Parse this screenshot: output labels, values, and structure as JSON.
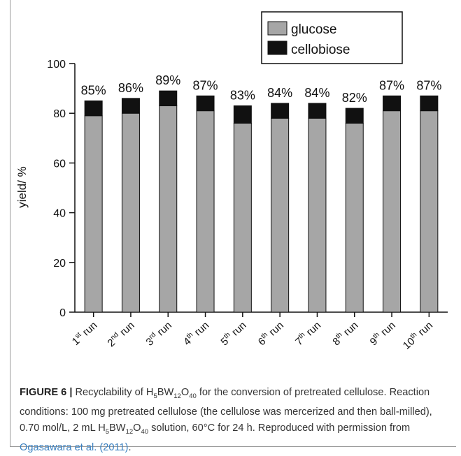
{
  "chart_data": {
    "type": "bar",
    "stacked": true,
    "categories": [
      "1st run",
      "2nd run",
      "3rd run",
      "4th run",
      "5th run",
      "6th run",
      "7th run",
      "8th run",
      "9th run",
      "10th run"
    ],
    "category_parts": [
      {
        "num": "1",
        "sup": "st",
        "word": " run"
      },
      {
        "num": "2",
        "sup": "nd",
        "word": " run"
      },
      {
        "num": "3",
        "sup": "rd",
        "word": " run"
      },
      {
        "num": "4",
        "sup": "th",
        "word": " run"
      },
      {
        "num": "5",
        "sup": "th",
        "word": " run"
      },
      {
        "num": "6",
        "sup": "th",
        "word": " run"
      },
      {
        "num": "7",
        "sup": "th",
        "word": " run"
      },
      {
        "num": "8",
        "sup": "th",
        "word": " run"
      },
      {
        "num": "9",
        "sup": "th",
        "word": " run"
      },
      {
        "num": "10",
        "sup": "th",
        "word": " run"
      }
    ],
    "series": [
      {
        "name": "glucose",
        "color": "#a6a6a6",
        "values": [
          79,
          80,
          83,
          81,
          76,
          78,
          78,
          76,
          81,
          81
        ]
      },
      {
        "name": "cellobiose",
        "color": "#111111",
        "values": [
          6,
          6,
          6,
          6,
          7,
          6,
          6,
          6,
          6,
          6
        ]
      }
    ],
    "data_labels": [
      "85%",
      "86%",
      "89%",
      "87%",
      "83%",
      "84%",
      "84%",
      "82%",
      "87%",
      "87%"
    ],
    "title": "",
    "xlabel": "",
    "ylabel": "yield/ %",
    "ylim": [
      0,
      100
    ],
    "yticks": [
      0,
      20,
      40,
      60,
      80,
      100
    ],
    "grid": false,
    "legend": "top-right"
  },
  "caption": {
    "label": "FIGURE 6 |",
    "t1": " Recyclability of H",
    "s1": "5",
    "t2": "BW",
    "s2": "12",
    "t3": "O",
    "s3": "40",
    "t4": " for the conversion of pretreated cellulose. Reaction conditions: 100 mg pretreated cellulose (the cellulose was mercerized and then ball-milled), 0.70 mol/L, 2 mL H",
    "s4": "5",
    "t5": "BW",
    "s5": "12",
    "t6": "O",
    "s6": "40",
    "t7": " solution, 60°C for 24 h. Reproduced with permission from ",
    "link": "Ogasawara et al. (2011)",
    "t8": "."
  }
}
